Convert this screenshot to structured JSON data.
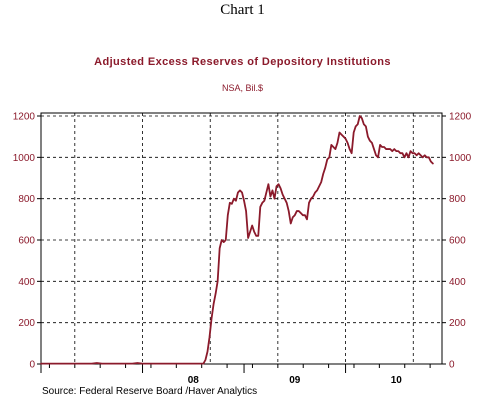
{
  "page_heading": "Chart 1",
  "source": "Source:  Federal Reserve Board /Haver Analytics",
  "colors": {
    "series": "#8b1a2b",
    "title": "#8b1a2b",
    "axis_text": "#8b1a2b",
    "grid": "#000000"
  },
  "chart_data": {
    "type": "line",
    "title": "Adjusted Excess Reserves of Depository Institutions",
    "subtitle": "NSA, Bil.$",
    "xlabel": "",
    "ylabel": "",
    "ylim": [
      0,
      1200
    ],
    "y_ticks": [
      0,
      200,
      400,
      600,
      800,
      1000,
      1200
    ],
    "y_tick_labels": [
      "0",
      "200",
      "400",
      "600",
      "800",
      "1000",
      "1200"
    ],
    "y_axis_sides": [
      "left",
      "right"
    ],
    "xlim": [
      2007.0,
      2010.95
    ],
    "x_tick_labels": [
      {
        "label": "08",
        "x": 2008.5
      },
      {
        "label": "09",
        "x": 2009.5
      },
      {
        "label": "10",
        "x": 2010.5
      }
    ],
    "x_minor_ticks": [
      2007.083,
      2007.333,
      2007.583,
      2007.833,
      2008.083,
      2008.333,
      2008.583,
      2008.833,
      2009.083,
      2009.333,
      2009.583,
      2009.833,
      2010.083,
      2010.333,
      2010.583,
      2010.833
    ],
    "vertical_gridlines": [
      2007.333,
      2008.0,
      2008.667,
      2009.333,
      2010.0,
      2010.667
    ],
    "grid": true,
    "grid_style": "dashed",
    "legend": "none",
    "series": [
      {
        "x": [
          2007.0,
          2007.5,
          2007.55,
          2007.6,
          2007.9,
          2007.95,
          2008.0,
          2008.6,
          2008.62,
          2008.64,
          2008.66,
          2008.68,
          2008.7,
          2008.72,
          2008.74,
          2008.76,
          2008.78,
          2008.8,
          2008.82,
          2008.84,
          2008.86,
          2008.88,
          2008.9,
          2008.92,
          2008.94,
          2008.96,
          2008.98,
          2009.0,
          2009.02,
          2009.04,
          2009.06,
          2009.08,
          2009.1,
          2009.12,
          2009.14,
          2009.16,
          2009.18,
          2009.2,
          2009.22,
          2009.24,
          2009.26,
          2009.28,
          2009.3,
          2009.32,
          2009.34,
          2009.36,
          2009.38,
          2009.4,
          2009.42,
          2009.44,
          2009.46,
          2009.48,
          2009.5,
          2009.52,
          2009.54,
          2009.56,
          2009.58,
          2009.6,
          2009.62,
          2009.64,
          2009.66,
          2009.68,
          2009.7,
          2009.72,
          2009.74,
          2009.76,
          2009.78,
          2009.8,
          2009.82,
          2009.84,
          2009.86,
          2009.88,
          2009.9,
          2009.92,
          2009.94,
          2009.96,
          2009.98,
          2010.0,
          2010.02,
          2010.04,
          2010.06,
          2010.08,
          2010.1,
          2010.12,
          2010.14,
          2010.16,
          2010.18,
          2010.2,
          2010.22,
          2010.24,
          2010.26,
          2010.28,
          2010.3,
          2010.32,
          2010.34,
          2010.36,
          2010.38,
          2010.4,
          2010.42,
          2010.44,
          2010.46,
          2010.48,
          2010.5,
          2010.52,
          2010.54,
          2010.56,
          2010.58,
          2010.6,
          2010.62,
          2010.64,
          2010.66,
          2010.68,
          2010.7,
          2010.72,
          2010.74,
          2010.76,
          2010.78,
          2010.8,
          2010.82,
          2010.84,
          2010.86
        ],
        "values": [
          2,
          2,
          5,
          2,
          2,
          5,
          2,
          2,
          20,
          60,
          130,
          220,
          290,
          340,
          400,
          560,
          600,
          590,
          600,
          720,
          780,
          775,
          800,
          790,
          830,
          840,
          830,
          790,
          740,
          610,
          640,
          670,
          640,
          620,
          620,
          760,
          780,
          790,
          830,
          870,
          810,
          840,
          800,
          860,
          870,
          850,
          820,
          800,
          780,
          740,
          680,
          710,
          720,
          740,
          740,
          730,
          720,
          720,
          700,
          780,
          800,
          810,
          830,
          840,
          860,
          880,
          920,
          950,
          990,
          1000,
          1060,
          1050,
          1040,
          1070,
          1120,
          1110,
          1100,
          1090,
          1070,
          1040,
          1020,
          1120,
          1150,
          1160,
          1200,
          1190,
          1160,
          1150,
          1100,
          1080,
          1070,
          1040,
          1010,
          1000,
          1060,
          1050,
          1050,
          1040,
          1040,
          1040,
          1030,
          1040,
          1030,
          1030,
          1020,
          1020,
          1000,
          1020,
          1000,
          1030,
          1020,
          1020,
          1010,
          1020,
          1010,
          1000,
          1010,
          1000,
          1000,
          980,
          970
        ]
      }
    ]
  }
}
